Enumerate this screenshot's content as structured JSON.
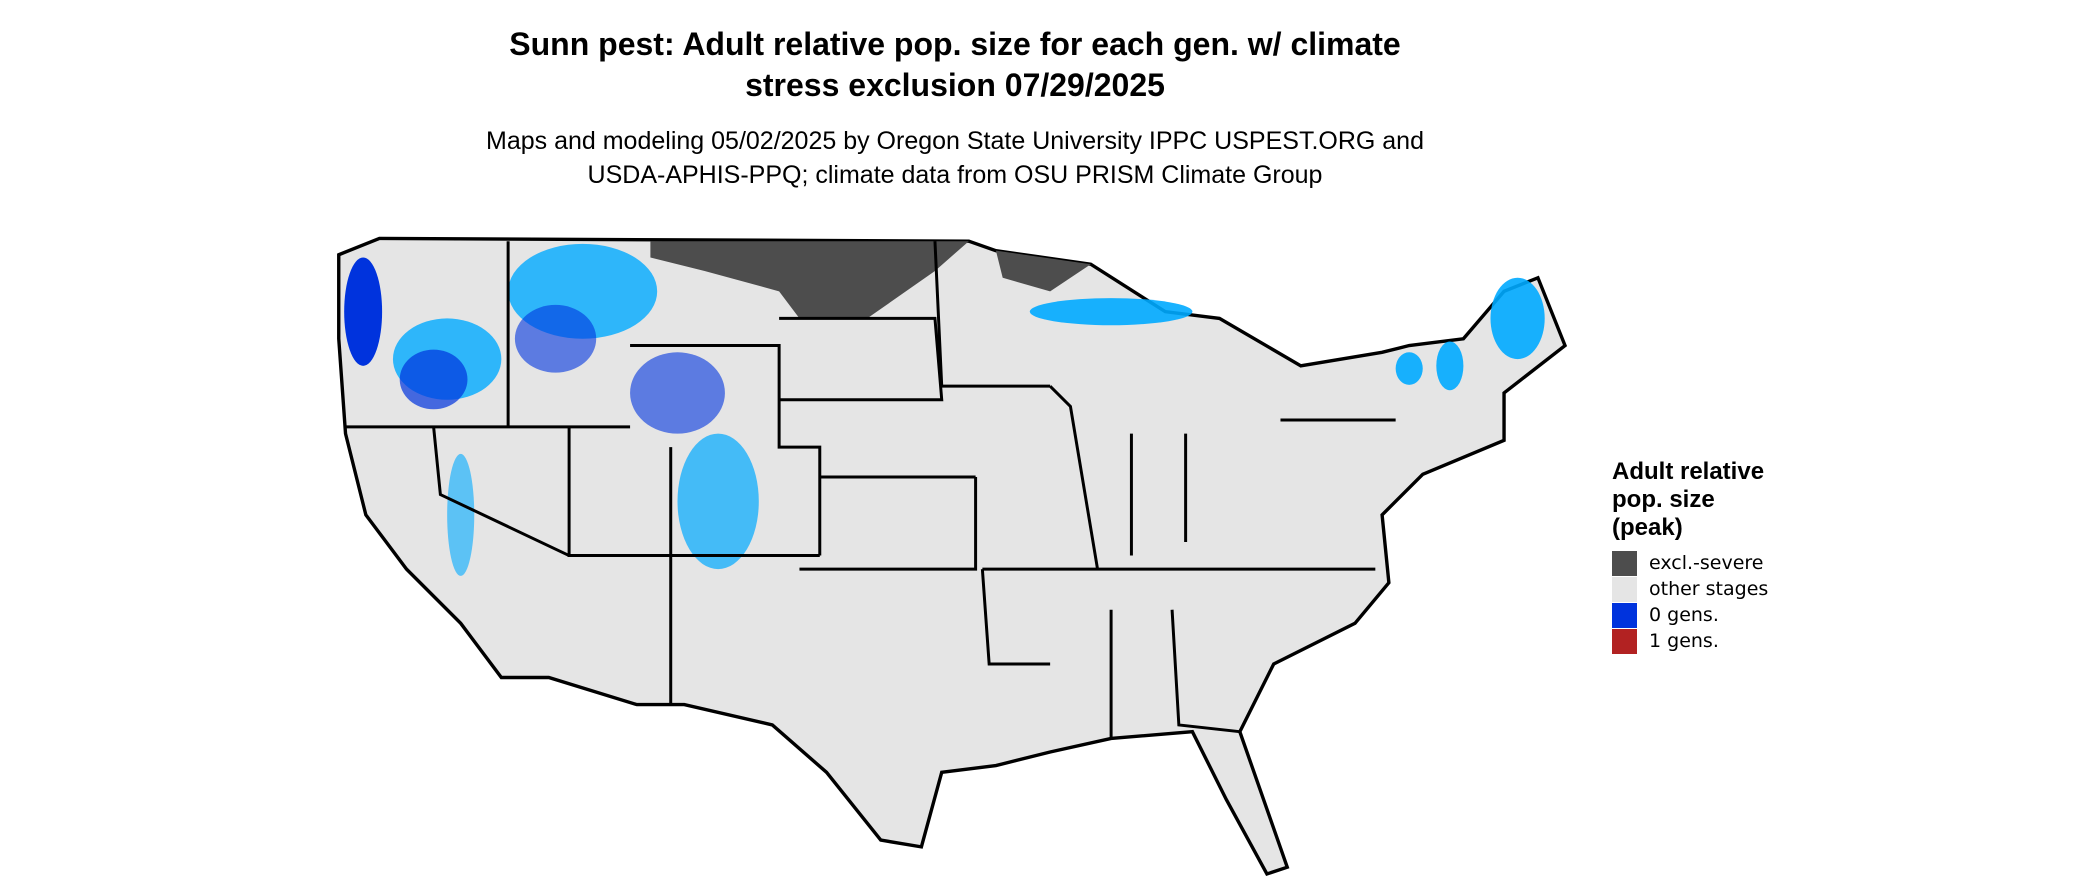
{
  "header": {
    "title_lines": [
      "Sunn pest: Adult relative pop. size for each gen. w/ climate",
      "stress exclusion 07/29/2025"
    ],
    "subtitle_lines": [
      "Maps and modeling 05/02/2025 by Oregon State University IPPC USPEST.ORG and",
      "USDA-APHIS-PPQ; climate data from OSU PRISM Climate Group"
    ]
  },
  "legend": {
    "title_lines": [
      "Adult relative",
      "pop. size",
      "(peak)"
    ],
    "items": [
      {
        "label": "excl.-severe",
        "color": "#4d4d4d"
      },
      {
        "label": "other stages",
        "color": "#e5e5e5"
      },
      {
        "label": "0 gens.",
        "color": "#0033dd"
      },
      {
        "label": "1 gens.",
        "color": "#b22222"
      }
    ]
  }
}
